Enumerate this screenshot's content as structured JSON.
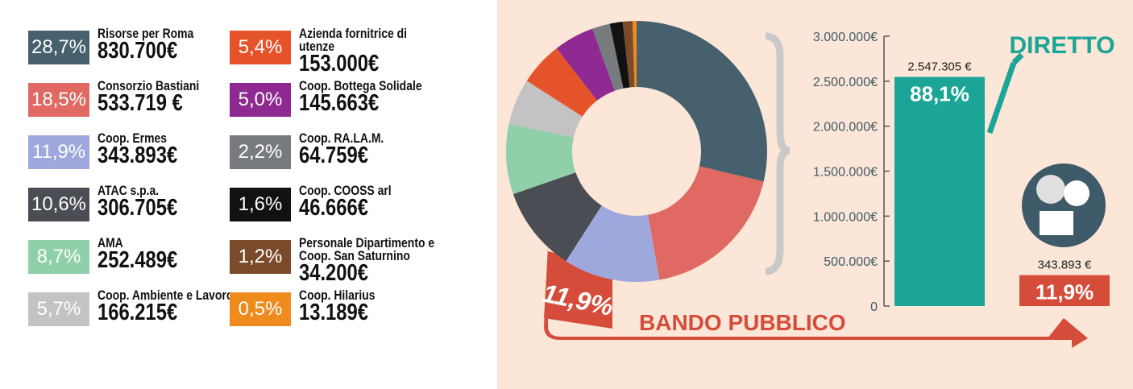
{
  "chart_data": [
    {
      "type": "pie",
      "categories": [
        "Risorse per Roma",
        "Consorzio Bastiani",
        "Coop. Ermes",
        "ATAC s.p.a.",
        "AMA",
        "Coop. Ambiente e Lavoro",
        "Azienda fornitrice di utenze",
        "Coop. Bottega Solidale",
        "Coop. RA.LA.M.",
        "Coop. COOSS arl",
        "Personale Dipartimento e Coop. San Saturnino",
        "Coop. Hilarius"
      ],
      "values": [
        28.7,
        18.5,
        11.9,
        10.6,
        8.7,
        5.7,
        5.4,
        5.0,
        2.2,
        1.6,
        1.2,
        0.5
      ],
      "value_labels": [
        "28,7%",
        "18,5%",
        "11,9%",
        "10,6%",
        "8,7%",
        "5,7%",
        "5,4%",
        "5,0%",
        "2,2%",
        "1,6%",
        "1,2%",
        "0,5%"
      ],
      "amount_labels": [
        "830.700€",
        "533.719 €",
        "343.893€",
        "306.705€",
        "252.489€",
        "166.215€",
        "153.000€",
        "145.663€",
        "64.759€",
        "46.666€",
        "34.200€",
        "13.189€"
      ],
      "colors": [
        "#46606e",
        "#e06a63",
        "#9fa8dd",
        "#4a4e54",
        "#8fcfa9",
        "#c3c3c3",
        "#e5532a",
        "#8e2a91",
        "#777b7f",
        "#111111",
        "#7a4a2a",
        "#ef8a1c"
      ]
    },
    {
      "type": "bar",
      "categories": [
        "DIRETTO",
        "BANDO PUBBLICO"
      ],
      "values": [
        2547305,
        343893
      ],
      "value_labels": [
        "2.547.305 €",
        "343.893 €"
      ],
      "percent_labels": [
        "88,1%",
        "11,9%"
      ],
      "colors": [
        "#1aa596",
        "#d54d3a"
      ],
      "ylim": [
        0,
        3000000
      ],
      "yticks": [
        0,
        {
          "value": 500000,
          "label": "500.000€"
        },
        {
          "value": 1000000,
          "label": "1.000.000€"
        },
        {
          "value": 1500000,
          "label": "1.500.000€"
        },
        {
          "value": 2000000,
          "label": "2.000.000€"
        },
        {
          "value": 2500000,
          "label": "2.500.000€"
        },
        {
          "value": 3000000,
          "label": "3.000.000€"
        }
      ]
    }
  ]
}
